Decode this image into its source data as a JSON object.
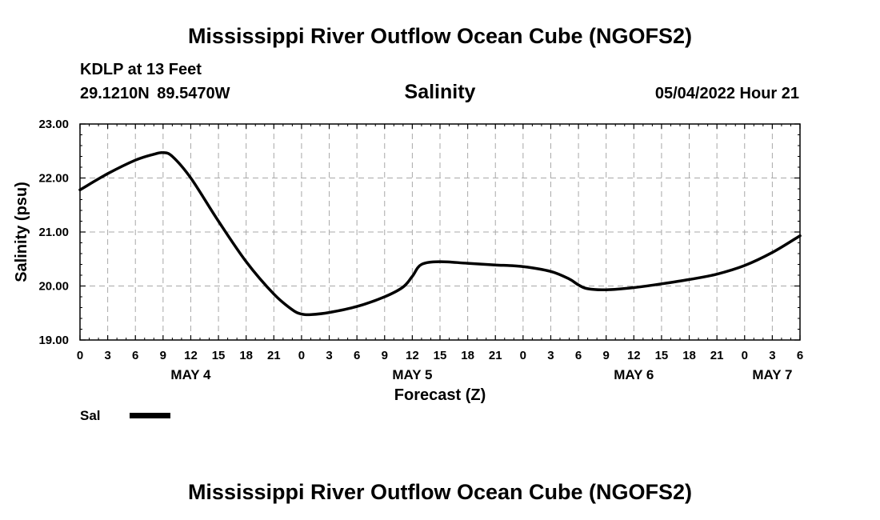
{
  "header": {
    "title": "Mississippi River Outflow Ocean Cube (NGOFS2)",
    "station": "KDLP at 13 Feet",
    "coords": "29.1210N  89.5470W",
    "variable": "Salinity",
    "run_time": "05/04/2022 Hour 21"
  },
  "legend": {
    "label": "Sal",
    "color": "#000000"
  },
  "footer": {
    "title": "Mississippi River Outflow Ocean Cube (NGOFS2)"
  },
  "chart_data": {
    "type": "line",
    "title": "Salinity",
    "xlabel": "Forecast (Z)",
    "ylabel": "Salinity (psu)",
    "ylim": [
      19.0,
      23.0
    ],
    "xlim": [
      0,
      78
    ],
    "yticks": [
      "19.00",
      "20.00",
      "21.00",
      "22.00",
      "23.00"
    ],
    "xtick_labels": [
      "0",
      "3",
      "6",
      "9",
      "12",
      "15",
      "18",
      "21",
      "0",
      "3",
      "6",
      "9",
      "12",
      "15",
      "18",
      "21",
      "0",
      "3",
      "6",
      "9",
      "12",
      "15",
      "18",
      "21",
      "0",
      "3",
      "6"
    ],
    "date_labels": [
      {
        "label": "MAY 4",
        "hour": 12
      },
      {
        "label": "MAY 5",
        "hour": 36
      },
      {
        "label": "MAY 6",
        "hour": 60
      },
      {
        "label": "MAY 7",
        "hour": 75
      }
    ],
    "grid": true,
    "series": [
      {
        "name": "Sal",
        "x": [
          0,
          3,
          6,
          8,
          9,
          10,
          12,
          15,
          18,
          21,
          23,
          24,
          25,
          27,
          30,
          33,
          35,
          36,
          37,
          39,
          42,
          45,
          48,
          51,
          53,
          54,
          55,
          57,
          60,
          63,
          66,
          69,
          72,
          75,
          78
        ],
        "values": [
          21.78,
          22.08,
          22.33,
          22.44,
          22.47,
          22.4,
          22.0,
          21.2,
          20.45,
          19.85,
          19.56,
          19.48,
          19.47,
          19.51,
          19.62,
          19.8,
          19.98,
          20.18,
          20.4,
          20.45,
          20.42,
          20.39,
          20.36,
          20.27,
          20.13,
          20.02,
          19.95,
          19.93,
          19.97,
          20.04,
          20.12,
          20.22,
          20.38,
          20.62,
          20.93
        ]
      }
    ]
  }
}
